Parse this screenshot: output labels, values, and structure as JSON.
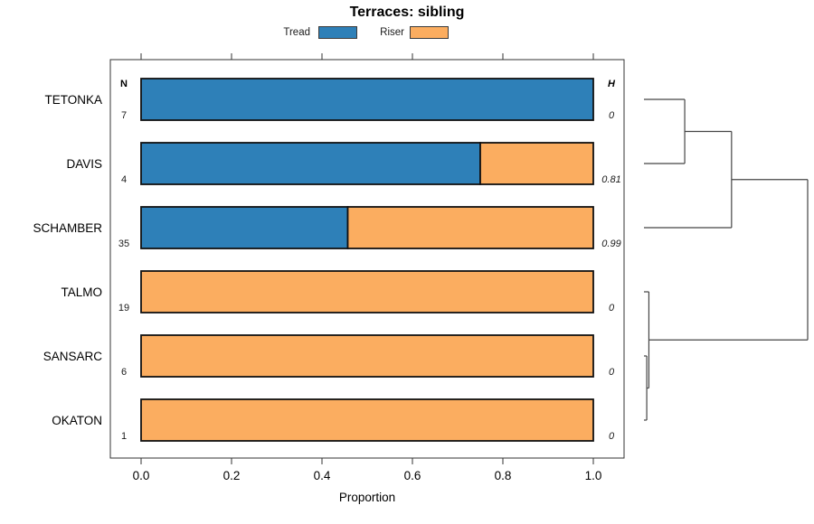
{
  "title": "Terraces: sibling",
  "legend": {
    "items": [
      {
        "label": "Tread",
        "color": "#2E80B8"
      },
      {
        "label": "Riser",
        "color": "#FBAD60"
      }
    ]
  },
  "axis": {
    "xlabel": "Proportion",
    "tick_labels": [
      "0.0",
      "0.2",
      "0.4",
      "0.6",
      "0.8",
      "1.0"
    ],
    "tick_values": [
      0,
      0.2,
      0.4,
      0.6,
      0.8,
      1.0
    ]
  },
  "columns": {
    "n_header": "N",
    "h_header": "H"
  },
  "chart_data": {
    "type": "bar",
    "orientation": "horizontal_stacked",
    "title": "Terraces: sibling",
    "xlabel": "Proportion",
    "xlim": [
      0,
      1
    ],
    "x_ticks": [
      0,
      0.2,
      0.4,
      0.6,
      0.8,
      1.0
    ],
    "grid": false,
    "legend_position": "top",
    "categories": [
      "TETONKA",
      "DAVIS",
      "SCHAMBER",
      "TALMO",
      "SANSARC",
      "OKATON"
    ],
    "series": [
      {
        "name": "Tread",
        "color": "#2E80B8",
        "values": [
          1.0,
          0.75,
          0.457,
          0,
          0,
          0
        ]
      },
      {
        "name": "Riser",
        "color": "#FBAD60",
        "values": [
          0,
          0.25,
          0.543,
          1.0,
          1.0,
          1.0
        ]
      }
    ],
    "n_values": [
      "7",
      "4",
      "35",
      "19",
      "6",
      "1"
    ],
    "h_values": [
      "0",
      "0.81",
      "0.99",
      "0",
      "0",
      "0"
    ],
    "dendrogram": {
      "height_scale": "relative (0 = identical, 1 = max observed merge height)",
      "merges": [
        {
          "children": [
            [
              "leaf",
              4
            ],
            [
              "leaf",
              5
            ]
          ],
          "height": 0.017
        },
        {
          "children": [
            [
              "leaf",
              3
            ],
            [
              "cluster",
              0
            ]
          ],
          "height": 0.03
        },
        {
          "children": [
            [
              "leaf",
              0
            ],
            [
              "leaf",
              1
            ]
          ],
          "height": 0.249
        },
        {
          "children": [
            [
              "cluster",
              2
            ],
            [
              "leaf",
              2
            ]
          ],
          "height": 0.535
        },
        {
          "children": [
            [
              "cluster",
              3
            ],
            [
              "cluster",
              1
            ]
          ],
          "height": 1.0
        }
      ]
    }
  }
}
